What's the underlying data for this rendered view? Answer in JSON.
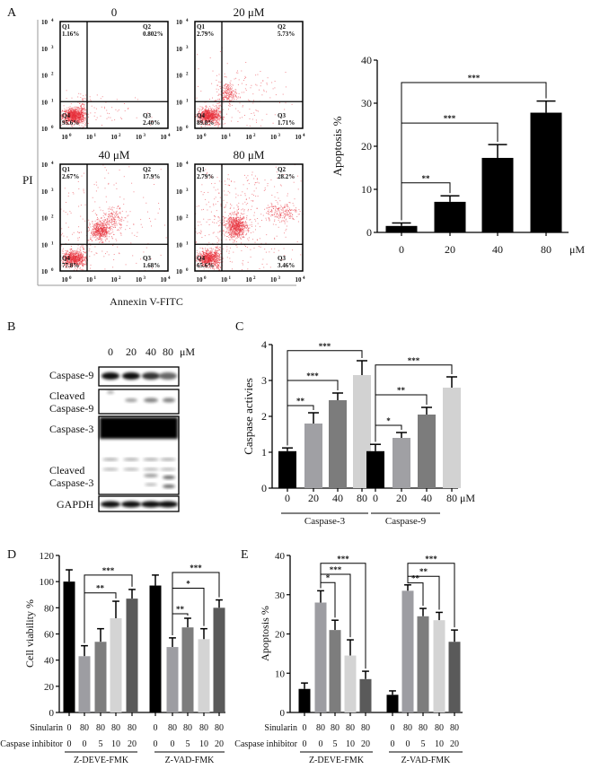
{
  "panel_labels": [
    "A",
    "B",
    "C",
    "D",
    "E"
  ],
  "flow_cytometry": {
    "x_label": "Annexin V-FITC",
    "y_label": "PI",
    "tick_base": "10",
    "tick_exponents": [
      "0",
      "1",
      "2",
      "3",
      "4"
    ],
    "dot_color": "#e8303a",
    "plots": [
      {
        "title": "0",
        "Q1": "1.16%",
        "Q2": "0.802%",
        "Q3": "2.40%",
        "Q4": "95.6%"
      },
      {
        "title": "20 μM",
        "Q1": "2.79%",
        "Q2": "5.73%",
        "Q3": "1.71%",
        "Q4": "89.8%"
      },
      {
        "title": "40 μM",
        "Q1": "2.67%",
        "Q2": "17.9%",
        "Q3": "1.68%",
        "Q4": "77.8%"
      },
      {
        "title": "80 μM",
        "Q1": "2.79%",
        "Q2": "28.2%",
        "Q3": "3.46%",
        "Q4": "65.6%"
      }
    ],
    "quadrant_names": [
      "Q1",
      "Q2",
      "Q3",
      "Q4"
    ]
  },
  "western_blot": {
    "lanes": [
      "0",
      "20",
      "40",
      "80"
    ],
    "unit": "μM",
    "rows": [
      {
        "lines": [
          "Caspase-9"
        ]
      },
      {
        "lines": [
          "Cleaved",
          "Caspase-9"
        ]
      },
      {
        "lines": [
          "Caspase-3"
        ]
      },
      {
        "lines": [
          "Cleaved",
          "Caspase-3"
        ]
      },
      {
        "lines": [
          "GAPDH"
        ]
      }
    ]
  },
  "chart_data": [
    {
      "panel": "A",
      "type": "bar",
      "ylabel": "Apoptosis %",
      "ylim": [
        0,
        40
      ],
      "yticks": [
        0,
        10,
        20,
        30,
        40
      ],
      "categories": [
        "0",
        "20",
        "40",
        "80"
      ],
      "unit": "μM",
      "values": [
        1.5,
        7.1,
        17.3,
        27.8
      ],
      "errors": [
        0.7,
        1.4,
        3.1,
        2.7
      ],
      "colors": [
        "#000000",
        "#000000",
        "#000000",
        "#000000"
      ],
      "significance": [
        {
          "from": 0,
          "to": 1,
          "y": 11.5,
          "label": "**"
        },
        {
          "from": 0,
          "to": 2,
          "y": 25.4,
          "label": "***"
        },
        {
          "from": 0,
          "to": 3,
          "y": 34.8,
          "label": "***"
        }
      ]
    },
    {
      "panel": "C",
      "type": "bar",
      "ylabel": "Caspase activies",
      "ylim": [
        0,
        4
      ],
      "yticks": [
        0,
        1,
        2,
        3,
        4
      ],
      "categories": [
        "0",
        "20",
        "40",
        "80",
        "0",
        "20",
        "40",
        "80"
      ],
      "unit": "μM",
      "groups": [
        {
          "label": "Caspase-3"
        },
        {
          "label": "Caspase-9"
        }
      ],
      "values": [
        1.03,
        1.8,
        2.45,
        3.15,
        1.03,
        1.4,
        2.05,
        2.8
      ],
      "errors": [
        0.09,
        0.3,
        0.2,
        0.4,
        0.19,
        0.15,
        0.2,
        0.3
      ],
      "colors": [
        "#000000",
        "#a0a0a4",
        "#7c7c7c",
        "#d2d2d2",
        "#000000",
        "#a0a0a4",
        "#7c7c7c",
        "#d2d2d2"
      ],
      "significance": [
        {
          "from": 0,
          "to": 1,
          "y": 2.3,
          "label": "**"
        },
        {
          "from": 0,
          "to": 2,
          "y": 3.0,
          "label": "***"
        },
        {
          "from": 0,
          "to": 3,
          "y": 3.83,
          "label": "***"
        },
        {
          "from": 4,
          "to": 5,
          "y": 1.75,
          "label": "*"
        },
        {
          "from": 4,
          "to": 6,
          "y": 2.6,
          "label": "**"
        },
        {
          "from": 4,
          "to": 7,
          "y": 3.43,
          "label": "***"
        }
      ]
    },
    {
      "panel": "D",
      "type": "bar",
      "ylabel": "Cell viability %",
      "ylim": [
        0,
        120
      ],
      "yticks": [
        0,
        20,
        40,
        60,
        80,
        100,
        120
      ],
      "category_rows": [
        {
          "label": "Sinularin",
          "values": [
            "0",
            "80",
            "80",
            "80",
            "80",
            "0",
            "80",
            "80",
            "80",
            "80"
          ]
        },
        {
          "label": "Caspase inhibitor",
          "values": [
            "0",
            "0",
            "5",
            "10",
            "20",
            "0",
            "0",
            "5",
            "10",
            "20"
          ]
        }
      ],
      "groups": [
        {
          "label": "Z-DEVE-FMK"
        },
        {
          "label": "Z-VAD-FMK"
        }
      ],
      "values": [
        100,
        43,
        54,
        72,
        87,
        97,
        50,
        65,
        56,
        80
      ],
      "errors": [
        9,
        8,
        10,
        13,
        7,
        8,
        7,
        7,
        8,
        6
      ],
      "colors": [
        "#000000",
        "#9d9da2",
        "#7d7d7d",
        "#d4d4d4",
        "#5a5a5a",
        "#000000",
        "#9d9da2",
        "#7d7d7d",
        "#d4d4d4",
        "#5a5a5a"
      ],
      "significance": [
        {
          "from": 1,
          "to": 3,
          "y": 91.4,
          "label": "**"
        },
        {
          "from": 1,
          "to": 4,
          "y": 105,
          "label": "***"
        },
        {
          "from": 6,
          "to": 7,
          "y": 75.4,
          "label": "**"
        },
        {
          "from": 6,
          "to": 8,
          "y": 95,
          "label": "*"
        },
        {
          "from": 6,
          "to": 9,
          "y": 107,
          "label": "***"
        }
      ]
    },
    {
      "panel": "E",
      "type": "bar",
      "ylabel": "Apoptosis %",
      "ylim": [
        0,
        40
      ],
      "yticks": [
        0,
        10,
        20,
        30,
        40
      ],
      "category_rows": [
        {
          "label": "Sinularin",
          "values": [
            "0",
            "80",
            "80",
            "80",
            "80",
            "0",
            "80",
            "80",
            "80",
            "80"
          ]
        },
        {
          "label": "Caspase inhibitor",
          "values": [
            "0",
            "0",
            "5",
            "10",
            "20",
            "0",
            "0",
            "5",
            "10",
            "20"
          ]
        }
      ],
      "groups": [
        {
          "label": "Z-DEVE-FMK"
        },
        {
          "label": "Z-VAD-FMK"
        }
      ],
      "values": [
        6,
        28,
        21,
        14.5,
        8.5,
        4.5,
        31,
        24.5,
        23.5,
        18
      ],
      "errors": [
        1.5,
        3,
        2.5,
        4,
        2,
        1,
        1.5,
        2,
        2,
        3
      ],
      "colors": [
        "#000000",
        "#9d9da2",
        "#7d7d7d",
        "#d4d4d4",
        "#5a5a5a",
        "#000000",
        "#9d9da2",
        "#7d7d7d",
        "#d4d4d4",
        "#5a5a5a"
      ],
      "significance": [
        {
          "from": 1,
          "to": 2,
          "y": 33.1,
          "label": "*"
        },
        {
          "from": 1,
          "to": 3,
          "y": 35.2,
          "label": "***"
        },
        {
          "from": 1,
          "to": 4,
          "y": 38,
          "label": "***"
        },
        {
          "from": 6,
          "to": 7,
          "y": 33,
          "label": "**"
        },
        {
          "from": 6,
          "to": 8,
          "y": 34.7,
          "label": "**"
        },
        {
          "from": 6,
          "to": 9,
          "y": 38,
          "label": "***"
        }
      ]
    }
  ]
}
